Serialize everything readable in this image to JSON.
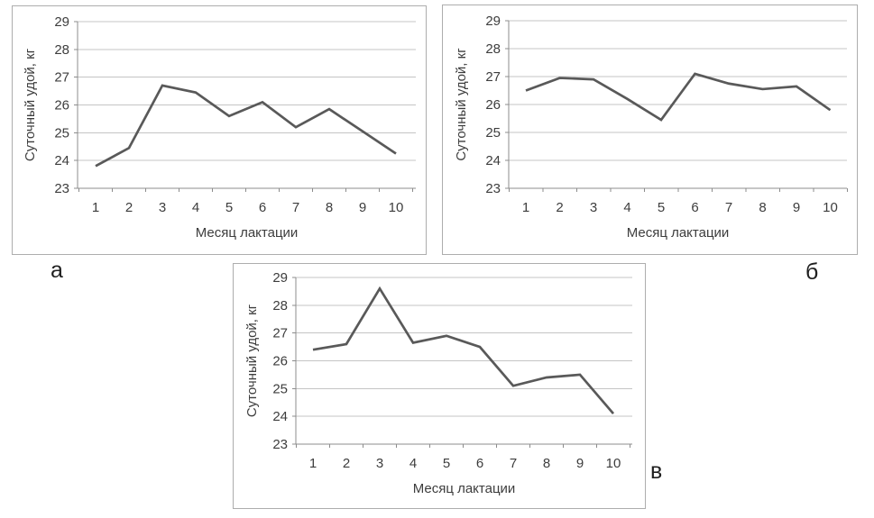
{
  "figure": {
    "description": "Three line charts of daily milk yield by lactation month",
    "panel_labels": [
      "а",
      "б",
      "в"
    ]
  },
  "colors": {
    "line": "#595959",
    "gridline": "#c4c4c4",
    "axis": "#8c8c8c",
    "tick_text": "#3d3d3d",
    "title_text": "#3d3d3d",
    "panel_border": "#adadad",
    "background": "#ffffff"
  },
  "chart_data": [
    {
      "type": "line",
      "panel_label": "а",
      "title": "",
      "xlabel": "Месяц лактации",
      "ylabel": "Суточный удой, кг",
      "categories": [
        "1",
        "2",
        "3",
        "4",
        "5",
        "6",
        "7",
        "8",
        "9",
        "10"
      ],
      "values": [
        23.8,
        24.45,
        26.7,
        26.45,
        25.6,
        26.1,
        25.2,
        25.85,
        25.05,
        24.25
      ],
      "ylim": [
        23,
        29
      ],
      "ytick_step": 1,
      "grid": true,
      "legend": "none",
      "line_color": "#595959"
    },
    {
      "type": "line",
      "panel_label": "б",
      "title": "",
      "xlabel": "Месяц лактации",
      "ylabel": "Суточный удой, кг",
      "categories": [
        "1",
        "2",
        "3",
        "4",
        "5",
        "6",
        "7",
        "8",
        "9",
        "10"
      ],
      "values": [
        26.5,
        26.95,
        26.9,
        26.2,
        25.45,
        27.1,
        26.75,
        26.55,
        26.65,
        25.8
      ],
      "ylim": [
        23,
        29
      ],
      "ytick_step": 1,
      "grid": true,
      "legend": "none",
      "line_color": "#595959"
    },
    {
      "type": "line",
      "panel_label": "в",
      "title": "",
      "xlabel": "Месяц лактации",
      "ylabel": "Суточный удой, кг",
      "categories": [
        "1",
        "2",
        "3",
        "4",
        "5",
        "6",
        "7",
        "8",
        "9",
        "10"
      ],
      "values": [
        26.4,
        26.6,
        28.6,
        26.65,
        26.9,
        26.5,
        25.1,
        25.4,
        25.5,
        24.1
      ],
      "ylim": [
        23,
        29
      ],
      "ytick_step": 1,
      "grid": true,
      "legend": "none",
      "line_color": "#595959"
    }
  ]
}
